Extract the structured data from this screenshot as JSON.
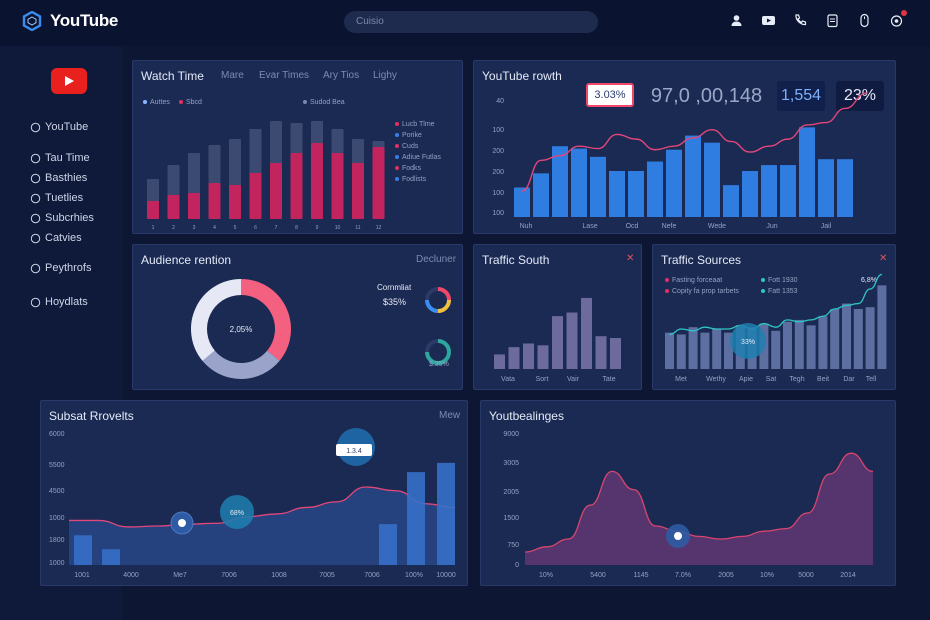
{
  "app": {
    "title": "YouTube",
    "search_placeholder": "Cuisio"
  },
  "colors": {
    "accent": "#e23444",
    "bar_blue": "#2f7de0",
    "bar_pink": "#c2245d",
    "panel": "#1b2a52"
  },
  "top_icons": [
    "person-icon",
    "video-icon",
    "phone-icon",
    "clipboard-icon",
    "mouse-icon",
    "notification-icon"
  ],
  "sidebar": {
    "items": [
      {
        "label": "YouTube",
        "icon": "info-icon"
      },
      {
        "label": "Tau Time",
        "icon": "pencil-icon"
      },
      {
        "label": "Basthies",
        "icon": "copy-icon"
      },
      {
        "label": "Tuetlies",
        "icon": "document-icon"
      },
      {
        "label": "Subcrhies",
        "icon": "refresh-icon"
      },
      {
        "label": "Catvies",
        "icon": "layers-icon"
      },
      {
        "label": "Peythrofs",
        "icon": "link-icon"
      },
      {
        "label": "Hoydlats",
        "icon": "shield-icon"
      }
    ]
  },
  "watch_time": {
    "title": "Watch Time",
    "tabs": [
      "Mare",
      "Evar Times",
      "Ary Tios",
      "Lighy"
    ],
    "legend": [
      "Auttes",
      "Sbcd",
      "Sudod Bea"
    ],
    "side_legend": [
      "Lucb Tlme",
      "Porike",
      "Cuds",
      "Adiue Futlas",
      "Fodks",
      "Fodlists"
    ],
    "x_labels": [
      "1",
      "2",
      "3",
      "4",
      "5",
      "6",
      "7",
      "8",
      "9",
      "10",
      "11",
      "12"
    ],
    "chart_data": {
      "type": "bar",
      "series": [
        {
          "values": [
            9,
            12,
            13,
            18,
            17,
            23,
            28,
            33,
            38,
            33,
            28,
            36
          ]
        },
        {
          "values": [
            20,
            27,
            33,
            37,
            40,
            45,
            49,
            48,
            49,
            45,
            40,
            39
          ]
        }
      ],
      "ylim": [
        0,
        55
      ]
    }
  },
  "growth": {
    "title": "YouTube rowth",
    "stat_highlight": "3.03%",
    "stat_big": "97,0 ,00,148",
    "stat_blue": "1,554",
    "stat_pct": "23%",
    "y_labels": [
      "40",
      "100",
      "200",
      "200",
      "100",
      "100"
    ],
    "x_labels": [
      "Nuh",
      "Lase",
      "Ocd",
      "Nefe",
      "Wede",
      "Jun",
      "Jail"
    ],
    "chart_data": {
      "type": "bar",
      "categories": [
        "1",
        "2",
        "3",
        "4",
        "5",
        "6",
        "7",
        "8",
        "9",
        "10",
        "11",
        "12",
        "13",
        "14",
        "15",
        "16",
        "17",
        "18"
      ],
      "values": [
        25,
        37,
        60,
        58,
        51,
        39,
        39,
        47,
        57,
        69,
        63,
        27,
        39,
        44,
        44,
        76,
        49,
        49
      ],
      "line": [
        22,
        48,
        52,
        60,
        58,
        70,
        66,
        57,
        60,
        67,
        74,
        64,
        55,
        60,
        66,
        78,
        80,
        92
      ],
      "ylim": [
        0,
        100
      ]
    }
  },
  "audience": {
    "title": "Audience rention",
    "tag": "Decluner",
    "donut_center": "2,05%",
    "chart_data": {
      "type": "pie",
      "values": [
        36,
        28,
        36
      ],
      "colors": [
        "#f4607f",
        "#9aa3c9",
        "#e6e9f5"
      ]
    },
    "conv_label": "Cornmliat",
    "conv_value": "$35%",
    "mini_small": "$.35%"
  },
  "traffic_south": {
    "title": "Traffic South",
    "x_labels": [
      "Vata",
      "Sort",
      "Vair",
      "Tate"
    ],
    "chart_data": {
      "type": "bar",
      "values": [
        8,
        12,
        14,
        13,
        29,
        31,
        39,
        18,
        17
      ],
      "ylim": [
        0,
        45
      ]
    }
  },
  "traffic_sources": {
    "title": "Traffic Sources",
    "legend": [
      "Fasting forceaat",
      "Copity fa prop tarbets",
      "Fott 1930",
      "Fatt 1353"
    ],
    "pct": "6,8%",
    "bubble": "33%",
    "x_labels": [
      "Met",
      "Wethy",
      "Apie",
      "Sat",
      "Tegh",
      "Beit",
      "Dar",
      "Tell"
    ],
    "chart_data": {
      "type": "bar",
      "values": [
        20,
        19,
        23,
        20,
        22,
        20,
        24,
        23,
        25,
        21,
        26,
        27,
        24,
        29,
        33,
        36,
        33,
        34,
        46
      ],
      "line": [
        19,
        22,
        21,
        23,
        22,
        22,
        24,
        22,
        25,
        23,
        27,
        26,
        27,
        29,
        33,
        35,
        36,
        44,
        52
      ],
      "ylim": [
        0,
        55
      ]
    }
  },
  "subset": {
    "title": "Subsat Rrovelts",
    "tag": "Mew",
    "y_labels": [
      "6000",
      "5500",
      "4500",
      "1000",
      "1800",
      "1000"
    ],
    "x_labels": [
      "1001",
      "4000",
      "Me7",
      "7006",
      "1008",
      "7005",
      "7006",
      "100%",
      "10000"
    ],
    "bubble_small": "68%",
    "tooltip": "1.3.4",
    "chart_data": {
      "type": "area",
      "values": [
        48,
        48,
        41,
        42,
        44,
        45,
        52,
        55,
        62,
        68,
        84,
        80,
        66,
        62
      ],
      "bars": [
        32,
        17,
        0,
        0,
        0,
        0,
        0,
        0,
        0,
        0,
        0,
        0,
        44,
        100,
        110
      ],
      "ylim": [
        0,
        140
      ]
    }
  },
  "bottom_right": {
    "title": "Youtbealinges",
    "y_labels": [
      "9000",
      "3005",
      "2005",
      "1500",
      "750",
      "0"
    ],
    "x_labels": [
      "10%",
      "5400",
      "1145",
      "7.0%",
      "2005",
      "10%",
      "5000",
      "2014"
    ],
    "chart_data": {
      "type": "area",
      "values": [
        10,
        14,
        20,
        46,
        72,
        58,
        30,
        26,
        22,
        20,
        22,
        26,
        28,
        40,
        70,
        86,
        72
      ],
      "ylim": [
        0,
        100
      ]
    }
  }
}
